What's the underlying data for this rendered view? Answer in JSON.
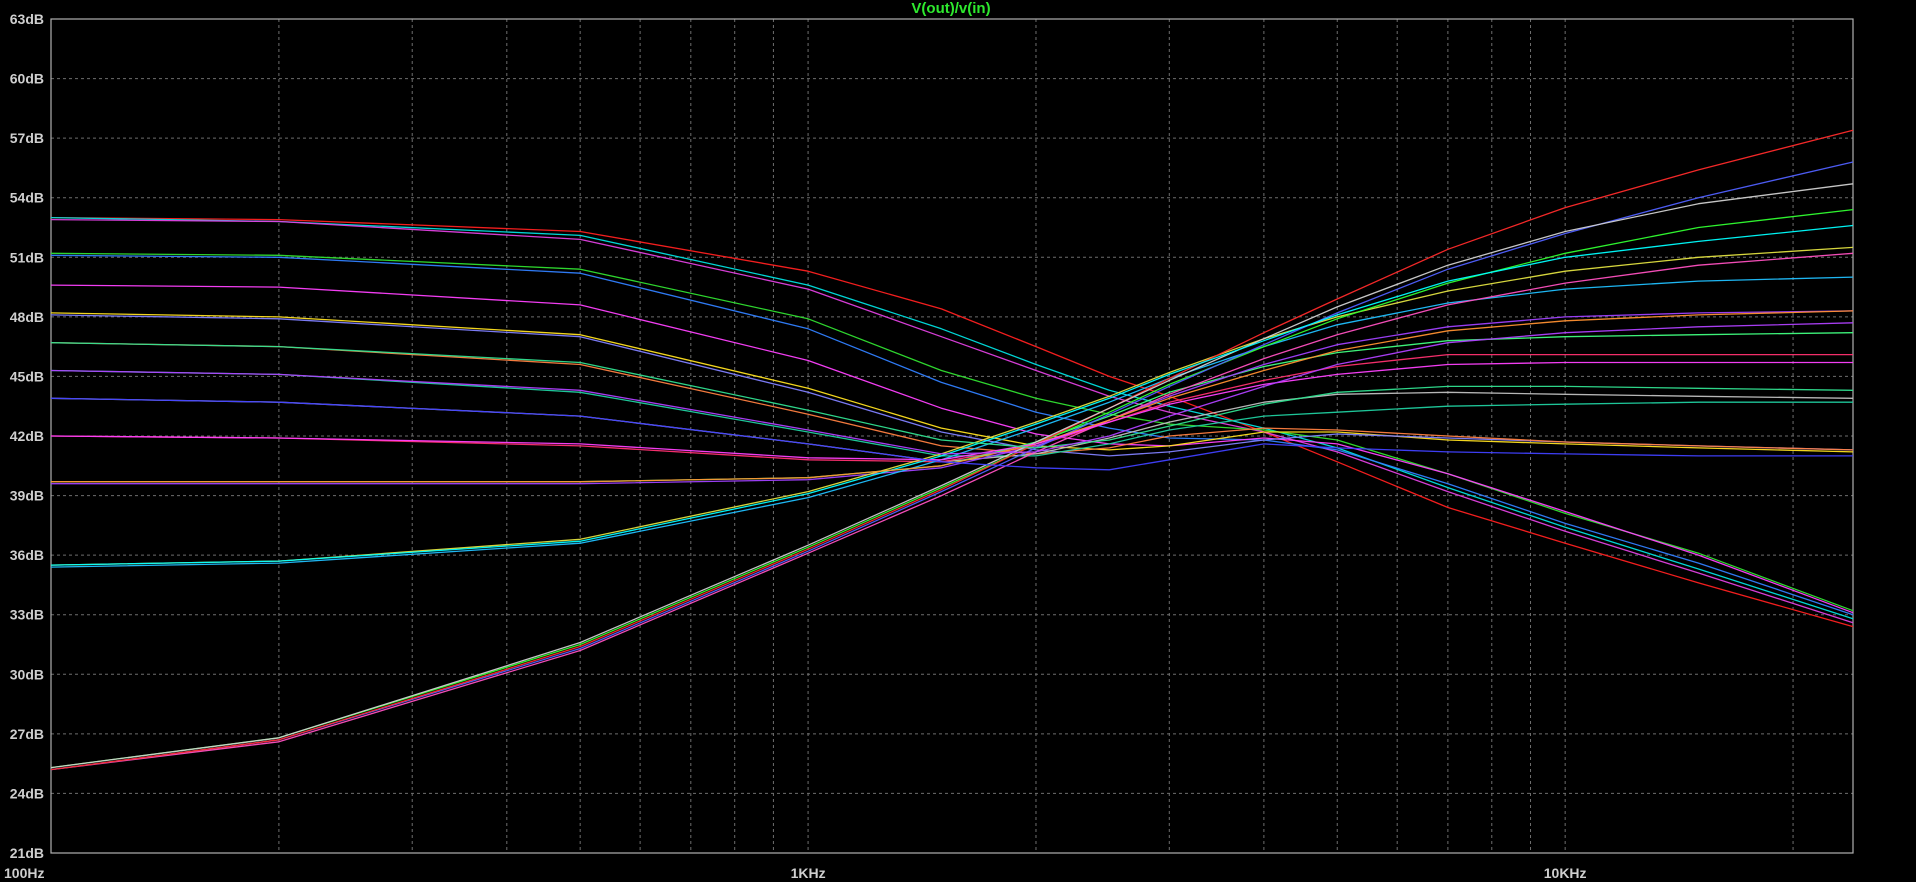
{
  "chart_data": {
    "type": "line",
    "title": "V(out)/v(in)",
    "title_color": "#2ee82e",
    "x_scale": "log",
    "xlim": [
      100,
      24000
    ],
    "ylim": [
      21,
      63
    ],
    "xlabel": "",
    "ylabel": "",
    "grid": true,
    "background": "#000000",
    "grid_color": "#6e6e6e",
    "axis_color": "#b0b0b0",
    "x_ticks": [
      {
        "value": 100,
        "label": "100Hz"
      },
      {
        "value": 1000,
        "label": "1KHz"
      },
      {
        "value": 10000,
        "label": "10KHz"
      }
    ],
    "y_ticks": [
      {
        "value": 21,
        "label": "21dB"
      },
      {
        "value": 24,
        "label": "24dB"
      },
      {
        "value": 27,
        "label": "27dB"
      },
      {
        "value": 30,
        "label": "30dB"
      },
      {
        "value": 33,
        "label": "33dB"
      },
      {
        "value": 36,
        "label": "36dB"
      },
      {
        "value": 39,
        "label": "39dB"
      },
      {
        "value": 42,
        "label": "42dB"
      },
      {
        "value": 45,
        "label": "45dB"
      },
      {
        "value": 48,
        "label": "48dB"
      },
      {
        "value": 51,
        "label": "51dB"
      },
      {
        "value": 54,
        "label": "54dB"
      },
      {
        "value": 57,
        "label": "57dB"
      },
      {
        "value": 60,
        "label": "60dB"
      },
      {
        "value": 63,
        "label": "63dB"
      }
    ],
    "series": [
      {
        "color": "#ff2020",
        "x": [
          100,
          200,
          500,
          1000,
          1500,
          2000,
          2500,
          3000,
          4000,
          5000,
          7000,
          10000,
          15000,
          24000
        ],
        "y": [
          53.0,
          52.9,
          52.3,
          50.3,
          48.4,
          46.5,
          45.0,
          44.0,
          42.2,
          40.7,
          38.4,
          36.6,
          34.6,
          32.4
        ]
      },
      {
        "color": "#00e0e0",
        "x": [
          100,
          200,
          500,
          1000,
          1500,
          2000,
          2500,
          3000,
          4000,
          5000,
          7000,
          10000,
          15000,
          24000
        ],
        "y": [
          53.0,
          52.8,
          52.1,
          49.6,
          47.4,
          45.6,
          44.3,
          43.5,
          42.4,
          41.4,
          39.4,
          37.4,
          35.3,
          32.8
        ]
      },
      {
        "color": "#e040e0",
        "x": [
          100,
          200,
          500,
          1000,
          1500,
          2000,
          2500,
          3000,
          4000,
          5000,
          7000,
          10000,
          15000,
          24000
        ],
        "y": [
          52.9,
          52.8,
          51.9,
          49.4,
          47.0,
          45.3,
          44.0,
          43.2,
          42.2,
          41.2,
          39.2,
          37.2,
          35.1,
          32.6
        ]
      },
      {
        "color": "#3080ff",
        "x": [
          100,
          200,
          500,
          1000,
          1500,
          2000,
          2500,
          3000,
          4000,
          5000,
          7000,
          10000,
          15000,
          24000
        ],
        "y": [
          51.1,
          51.0,
          50.2,
          47.4,
          44.7,
          43.2,
          42.4,
          41.9,
          41.8,
          41.3,
          39.6,
          37.6,
          35.6,
          33.0
        ]
      },
      {
        "color": "#30e030",
        "x": [
          100,
          200,
          500,
          1000,
          1500,
          2000,
          2500,
          3000,
          4000,
          5000,
          7000,
          10000,
          15000,
          24000
        ],
        "y": [
          51.2,
          51.1,
          50.4,
          47.9,
          45.3,
          43.9,
          43.1,
          42.6,
          42.3,
          41.8,
          40.1,
          38.1,
          36.1,
          33.2
        ]
      },
      {
        "color": "#ff40ff",
        "x": [
          100,
          200,
          500,
          1000,
          1500,
          2000,
          2500,
          3000,
          4000,
          5000,
          7000,
          10000,
          15000,
          24000
        ],
        "y": [
          49.6,
          49.5,
          48.6,
          45.8,
          43.4,
          42.1,
          41.6,
          41.5,
          41.9,
          41.6,
          40.1,
          38.2,
          36.0,
          33.1
        ]
      },
      {
        "color": "#ffe020",
        "x": [
          100,
          200,
          500,
          1000,
          1500,
          2000,
          2500,
          3000,
          4000,
          5000,
          7000,
          10000,
          15000,
          24000
        ],
        "y": [
          48.2,
          48.0,
          47.1,
          44.4,
          42.4,
          41.5,
          41.3,
          41.5,
          42.2,
          42.2,
          41.8,
          41.6,
          41.4,
          41.2
        ]
      },
      {
        "color": "#8080ff",
        "x": [
          100,
          200,
          500,
          1000,
          1500,
          2000,
          2500,
          3000,
          4000,
          5000,
          7000,
          10000,
          15000,
          24000
        ],
        "y": [
          48.1,
          47.9,
          47.0,
          44.2,
          42.2,
          41.3,
          41.0,
          41.2,
          41.8,
          42.1,
          41.9,
          41.7,
          41.5,
          41.3
        ]
      },
      {
        "color": "#ff8040",
        "x": [
          100,
          200,
          500,
          1000,
          1500,
          2000,
          2500,
          3000,
          4000,
          5000,
          7000,
          10000,
          15000,
          24000
        ],
        "y": [
          46.7,
          46.5,
          45.6,
          43.1,
          41.5,
          41.1,
          41.4,
          42.0,
          42.4,
          42.3,
          42.0,
          41.7,
          41.5,
          41.3
        ]
      },
      {
        "color": "#20d0a0",
        "x": [
          100,
          200,
          500,
          1000,
          1500,
          2000,
          2500,
          3000,
          4000,
          5000,
          7000,
          10000,
          15000,
          24000
        ],
        "y": [
          45.3,
          45.1,
          44.2,
          42.2,
          41.0,
          41.0,
          41.6,
          42.3,
          43.0,
          43.2,
          43.5,
          43.6,
          43.7,
          43.7
        ]
      },
      {
        "color": "#c0c0c0",
        "x": [
          100,
          200,
          500,
          1000,
          1500,
          2000,
          2500,
          3000,
          4000,
          5000,
          7000,
          10000,
          15000,
          24000
        ],
        "y": [
          43.9,
          43.7,
          43.0,
          41.6,
          40.7,
          41.1,
          41.9,
          42.7,
          43.7,
          44.1,
          44.2,
          44.1,
          44.0,
          43.9
        ]
      },
      {
        "color": "#ff3070",
        "x": [
          100,
          200,
          500,
          1000,
          1500,
          2000,
          2500,
          3000,
          4000,
          5000,
          7000,
          10000,
          15000,
          24000
        ],
        "y": [
          42.0,
          41.9,
          41.5,
          40.8,
          40.7,
          41.5,
          42.7,
          43.7,
          44.8,
          45.5,
          46.1,
          46.1,
          46.1,
          46.1
        ]
      },
      {
        "color": "#40ff80",
        "x": [
          100,
          200,
          500,
          1000,
          1500,
          2000,
          2500,
          3000,
          4000,
          5000,
          7000,
          10000,
          15000,
          24000
        ],
        "y": [
          39.7,
          39.7,
          39.7,
          39.9,
          40.5,
          41.7,
          43.0,
          44.2,
          45.5,
          46.2,
          46.8,
          47.0,
          47.1,
          47.2
        ]
      },
      {
        "color": "#a040ff",
        "x": [
          100,
          200,
          500,
          1000,
          1500,
          2000,
          2500,
          3000,
          4000,
          5000,
          7000,
          10000,
          15000,
          24000
        ],
        "y": [
          39.6,
          39.6,
          39.6,
          39.8,
          40.4,
          41.5,
          42.8,
          44.0,
          45.6,
          46.6,
          47.5,
          48.0,
          48.2,
          48.3
        ]
      },
      {
        "color": "#20c0ff",
        "x": [
          100,
          200,
          500,
          1000,
          1500,
          2000,
          2500,
          3000,
          4000,
          5000,
          7000,
          10000,
          15000,
          24000
        ],
        "y": [
          35.4,
          35.6,
          36.6,
          38.9,
          40.8,
          42.4,
          43.7,
          44.9,
          46.5,
          47.6,
          48.7,
          49.4,
          49.8,
          50.0
        ]
      },
      {
        "color": "#e0e040",
        "x": [
          100,
          200,
          500,
          1000,
          1500,
          2000,
          2500,
          3000,
          4000,
          5000,
          7000,
          10000,
          15000,
          24000
        ],
        "y": [
          35.5,
          35.7,
          36.8,
          39.2,
          41.1,
          42.7,
          44.0,
          45.2,
          46.9,
          48.0,
          49.3,
          50.3,
          51.0,
          51.5
        ]
      },
      {
        "color": "#ff50c0",
        "x": [
          100,
          200,
          500,
          1000,
          1500,
          2000,
          2500,
          3000,
          4000,
          5000,
          7000,
          10000,
          15000,
          24000
        ],
        "y": [
          25.2,
          26.6,
          31.2,
          36.1,
          39.0,
          41.2,
          42.8,
          44.1,
          45.9,
          47.1,
          48.6,
          49.7,
          50.6,
          51.2
        ]
      },
      {
        "color": "#30ff30",
        "x": [
          100,
          200,
          500,
          1000,
          1500,
          2000,
          2500,
          3000,
          4000,
          5000,
          7000,
          10000,
          15000,
          24000
        ],
        "y": [
          25.3,
          26.8,
          31.5,
          36.4,
          39.4,
          41.6,
          43.2,
          44.6,
          46.5,
          47.9,
          49.7,
          51.2,
          52.5,
          53.4
        ]
      },
      {
        "color": "#5060ff",
        "x": [
          100,
          200,
          500,
          1000,
          1500,
          2000,
          2500,
          3000,
          4000,
          5000,
          7000,
          10000,
          15000,
          24000
        ],
        "y": [
          25.2,
          26.7,
          31.3,
          36.2,
          39.2,
          41.4,
          43.1,
          44.5,
          46.6,
          48.2,
          50.4,
          52.2,
          54.0,
          55.8
        ]
      },
      {
        "color": "#ff2a2a",
        "x": [
          100,
          200,
          500,
          1000,
          1500,
          2000,
          2500,
          3000,
          4000,
          5000,
          7000,
          10000,
          15000,
          24000
        ],
        "y": [
          25.2,
          26.7,
          31.4,
          36.3,
          39.3,
          41.6,
          43.4,
          44.9,
          47.2,
          48.9,
          51.4,
          53.5,
          55.4,
          57.4
        ]
      },
      {
        "color": "#d0d0d0",
        "x": [
          100,
          200,
          500,
          1000,
          1500,
          2000,
          2500,
          3000,
          4000,
          5000,
          7000,
          10000,
          15000,
          24000
        ],
        "y": [
          25.3,
          26.8,
          31.6,
          36.5,
          39.5,
          41.7,
          43.4,
          44.8,
          46.9,
          48.5,
          50.6,
          52.3,
          53.7,
          54.7
        ]
      },
      {
        "color": "#00ffff",
        "x": [
          100,
          200,
          500,
          1000,
          1500,
          2000,
          2500,
          3000,
          4000,
          5000,
          7000,
          10000,
          15000,
          24000
        ],
        "y": [
          35.5,
          35.7,
          36.7,
          39.1,
          41.0,
          42.6,
          43.9,
          45.1,
          46.8,
          48.1,
          49.8,
          51.0,
          51.8,
          52.6
        ]
      },
      {
        "color": "#ff9030",
        "x": [
          100,
          200,
          500,
          1000,
          1500,
          2000,
          2500,
          3000,
          4000,
          5000,
          7000,
          10000,
          15000,
          24000
        ],
        "y": [
          39.7,
          39.7,
          39.7,
          39.9,
          40.5,
          41.6,
          42.8,
          43.9,
          45.3,
          46.3,
          47.3,
          47.8,
          48.1,
          48.3
        ]
      },
      {
        "color": "#ff40ff",
        "x": [
          100,
          200,
          500,
          1000,
          1500,
          2000,
          2500,
          3000,
          4000,
          5000,
          7000,
          10000,
          15000,
          24000
        ],
        "y": [
          42.0,
          41.9,
          41.6,
          40.9,
          40.8,
          41.6,
          42.7,
          43.6,
          44.6,
          45.1,
          45.6,
          45.7,
          45.7,
          45.7
        ]
      },
      {
        "color": "#4040ff",
        "x": [
          100,
          200,
          500,
          1000,
          1500,
          2000,
          2500,
          3000,
          4000,
          5000,
          7000,
          10000,
          15000,
          24000
        ],
        "y": [
          43.9,
          43.7,
          43.0,
          41.6,
          40.7,
          40.4,
          40.3,
          40.8,
          41.6,
          41.4,
          41.2,
          41.1,
          41.0,
          41.0
        ]
      },
      {
        "color": "#30e090",
        "x": [
          100,
          200,
          500,
          1000,
          1500,
          2000,
          2500,
          3000,
          4000,
          5000,
          7000,
          10000,
          15000,
          24000
        ],
        "y": [
          46.7,
          46.5,
          45.7,
          43.3,
          41.8,
          41.4,
          41.8,
          42.5,
          43.6,
          44.2,
          44.5,
          44.5,
          44.4,
          44.3
        ]
      },
      {
        "color": "#b040ff",
        "x": [
          100,
          200,
          500,
          1000,
          1500,
          2000,
          2500,
          3000,
          4000,
          5000,
          7000,
          10000,
          15000,
          24000
        ],
        "y": [
          45.3,
          45.1,
          44.3,
          42.3,
          41.1,
          41.2,
          42.0,
          43.0,
          44.5,
          45.6,
          46.7,
          47.2,
          47.5,
          47.7
        ]
      }
    ]
  }
}
